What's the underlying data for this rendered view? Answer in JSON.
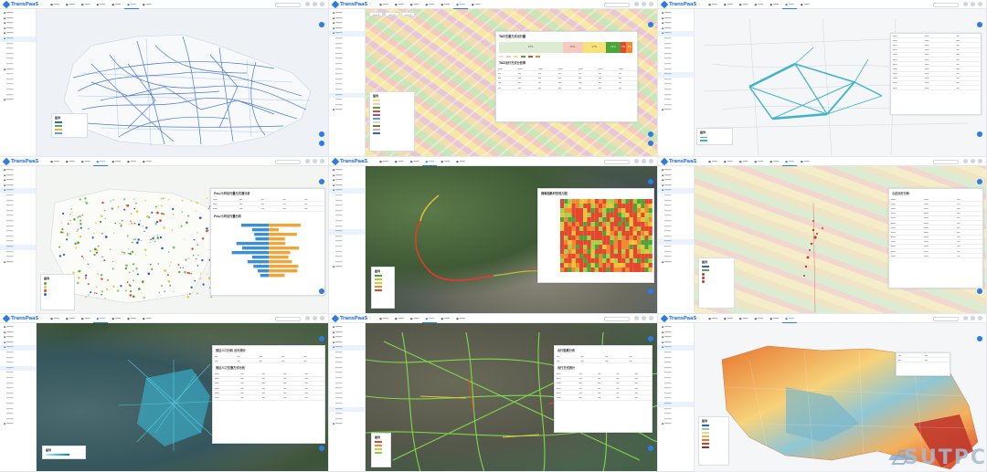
{
  "app": {
    "brand": "TransPaaS"
  },
  "panels": [
    {
      "active_tab": 6
    },
    {
      "active_tab": 6
    },
    {
      "active_tab": 6
    },
    {
      "active_tab": 4
    },
    {
      "active_tab": 4
    },
    {
      "active_tab": 6
    },
    {
      "active_tab": 4
    },
    {
      "active_tab": 4
    },
    {
      "active_tab": 6
    }
  ],
  "panel2": {
    "card_title1": "TAZ交通方式出行量",
    "card_title2": "TAZ出行方式分担率",
    "bar_values": [
      "47%",
      "15%",
      "17%",
      "11%",
      "4%",
      "5%"
    ]
  },
  "panel4": {
    "card_title1": "Pcu/小时出行量与交通分析",
    "card_title2": "Pcu/小时出行量分析"
  },
  "panel5": {
    "card_title": "拥堵指数时空热力图"
  },
  "panel6": {
    "card_title": "小区出行分析"
  },
  "panel7": {
    "card_title1": "到达人口分析 出行统计",
    "card_title2": "到达人口交通方式分析"
  },
  "panel8": {
    "card_title1": "出行距离分布",
    "card_title2": "出行方式统计"
  },
  "legend": {
    "title": "图例"
  },
  "watermark": {
    "text": "SUTPC"
  },
  "colors": {
    "accent": "#2d7be5",
    "watermark": "#a9bbcf"
  }
}
